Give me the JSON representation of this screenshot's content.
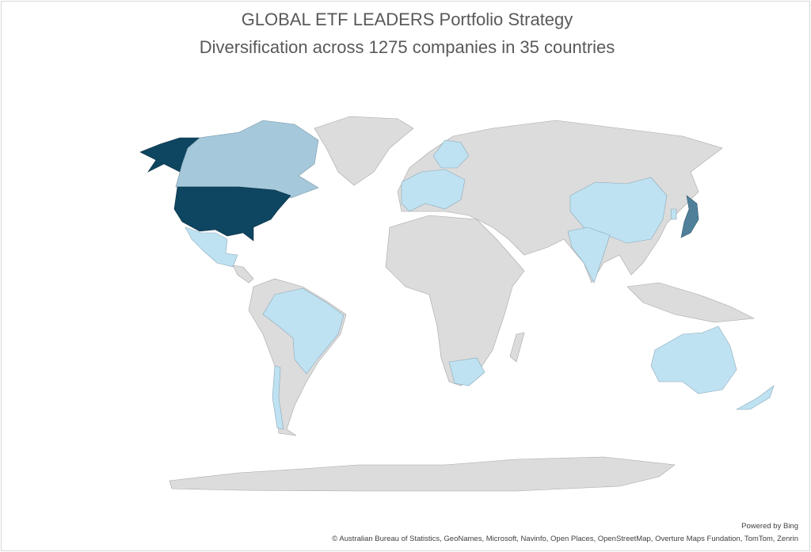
{
  "header": {
    "title": "GLOBAL ETF LEADERS Portfolio Strategy",
    "subtitle": "Diversification across 1275 companies in 35 countries"
  },
  "footer": {
    "powered_by": "Powered by Bing",
    "attribution": "© Australian Bureau of Statistics, GeoNames, Microsoft, Navinfo, Open Places, OpenStreetMap, Overture Maps Fundation, TomTom, Zenrin"
  }
}
